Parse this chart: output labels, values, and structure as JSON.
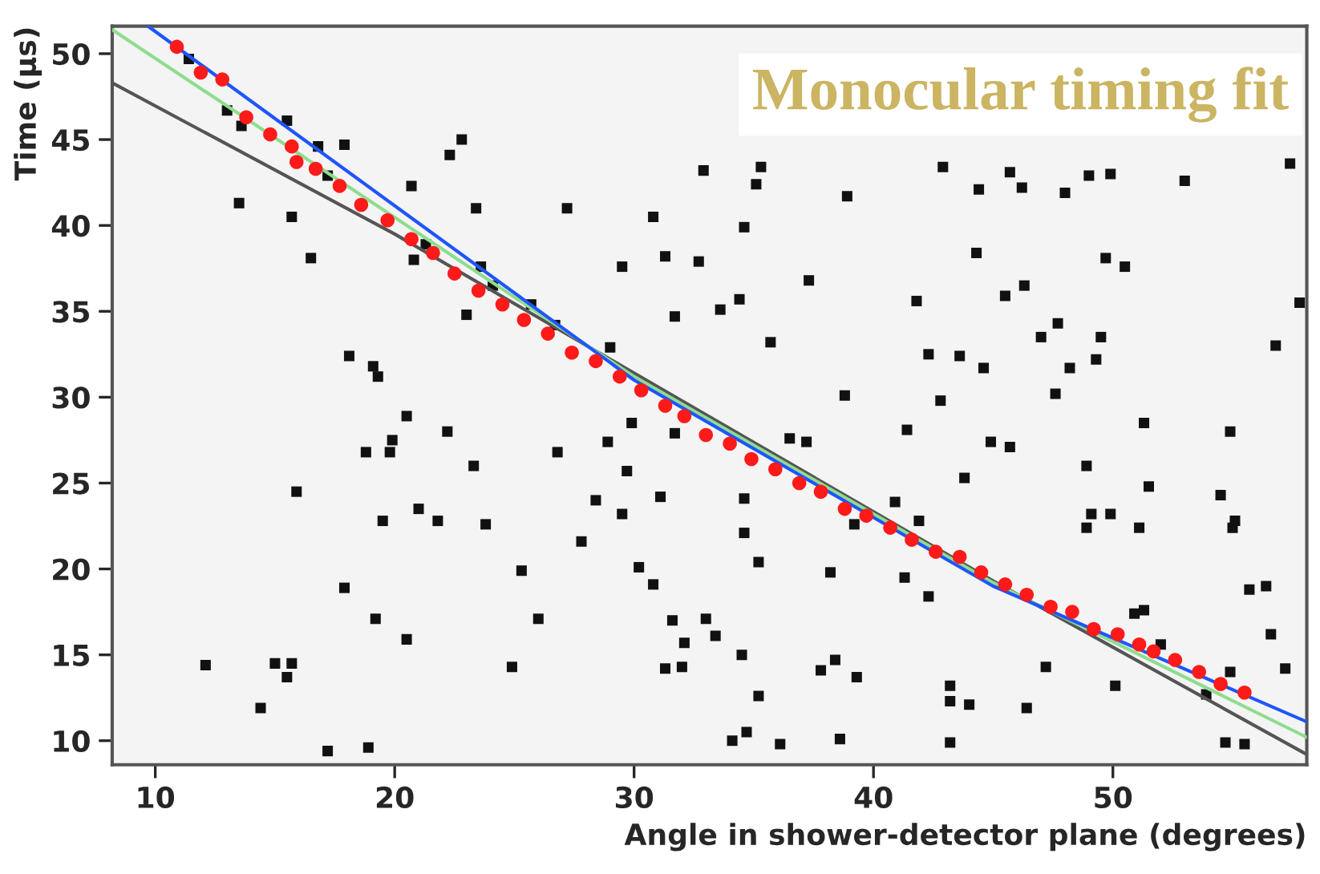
{
  "chart_data": {
    "type": "scatter",
    "title": "Monocular timing fit",
    "xlabel": "Angle in shower-detector plane (degrees)",
    "ylabel": "Time (μs)",
    "xlim": [
      8.2,
      58.1
    ],
    "ylim": [
      8.6,
      51.6
    ],
    "xticks": [
      10,
      20,
      30,
      40,
      50
    ],
    "yticks": [
      10,
      15,
      20,
      25,
      30,
      35,
      40,
      45,
      50
    ],
    "series": [
      {
        "marker": "square",
        "color": "#111111",
        "x": [
          11.4,
          13.0,
          13.6,
          13.5,
          15.5,
          15.7,
          16.8,
          17.9,
          16.5,
          17.2,
          20.7,
          20.8,
          21.3,
          22.3,
          22.8,
          23.4,
          23.6,
          24.1,
          23.0,
          25.7,
          26.7,
          27.2,
          29.0,
          29.5,
          30.8,
          31.3,
          18.1,
          19.1,
          19.3,
          20.5,
          22.2,
          29.9,
          12.1,
          15.0,
          15.7,
          15.5,
          14.4,
          15.9,
          17.2,
          18.9,
          17.9,
          18.8,
          19.8,
          19.9,
          19.5,
          19.2,
          20.5,
          21.0,
          21.8,
          23.3,
          23.8,
          24.9,
          25.3,
          26.0,
          26.8,
          27.8,
          28.4,
          28.9,
          29.7,
          29.5,
          30.2,
          30.8,
          31.6,
          31.3,
          31.1,
          32.9,
          35.3,
          35.1,
          38.9,
          42.9,
          44.4,
          45.7,
          46.2,
          48.0,
          49.0,
          49.9,
          53.0,
          57.4,
          34.6,
          32.7,
          37.3,
          31.7,
          33.6,
          34.4,
          35.7,
          41.8,
          44.3,
          49.7,
          50.5,
          45.5,
          46.3,
          47.7,
          47.0,
          49.5,
          42.3,
          43.6,
          44.6,
          48.2,
          49.3,
          57.8,
          56.8,
          38.8,
          42.8,
          47.6,
          51.3,
          54.9,
          36.5,
          37.2,
          41.4,
          44.9,
          31.7,
          45.7,
          48.9,
          51.5,
          54.5,
          55.1,
          55.0,
          49.1,
          49.9,
          48.9,
          51.1,
          43.8,
          34.6,
          34.6,
          40.9,
          41.9,
          39.2,
          35.2,
          38.2,
          41.3,
          42.3,
          33.0,
          33.4,
          32.1,
          34.5,
          32.0,
          37.8,
          38.4,
          39.3,
          35.2,
          43.2,
          43.2,
          44.0,
          46.4,
          47.2,
          50.1,
          50.9,
          51.3,
          52.0,
          53.9,
          54.9,
          55.7,
          56.4,
          56.6,
          57.2,
          34.1,
          34.7,
          36.1,
          38.6,
          43.2,
          54.7,
          55.5
        ],
        "values": [
          49.7,
          46.7,
          45.8,
          41.3,
          46.1,
          40.5,
          44.6,
          44.7,
          38.1,
          42.9,
          42.3,
          38.0,
          38.9,
          44.1,
          45.0,
          41.0,
          37.6,
          36.5,
          34.8,
          35.4,
          34.2,
          41.0,
          32.9,
          37.6,
          40.5,
          38.2,
          32.4,
          31.8,
          31.2,
          28.9,
          28.0,
          28.5,
          14.4,
          14.5,
          14.5,
          13.7,
          11.9,
          24.5,
          9.4,
          9.6,
          18.9,
          26.8,
          26.8,
          27.5,
          22.8,
          17.1,
          15.9,
          23.5,
          22.8,
          26.0,
          22.6,
          14.3,
          19.9,
          17.1,
          26.8,
          21.6,
          24.0,
          27.4,
          25.7,
          23.2,
          20.1,
          19.1,
          17.0,
          14.2,
          24.2,
          43.2,
          43.4,
          42.4,
          41.7,
          43.4,
          42.1,
          43.1,
          42.2,
          41.9,
          42.9,
          43.0,
          42.6,
          43.6,
          39.9,
          37.9,
          36.8,
          34.7,
          35.1,
          35.7,
          33.2,
          35.6,
          38.4,
          38.1,
          37.6,
          35.9,
          36.5,
          34.3,
          33.5,
          33.5,
          32.5,
          32.4,
          31.7,
          31.7,
          32.2,
          35.5,
          33.0,
          30.1,
          29.8,
          30.2,
          28.5,
          28.0,
          27.6,
          27.4,
          28.1,
          27.4,
          27.9,
          27.1,
          26.0,
          24.8,
          24.3,
          22.8,
          22.4,
          23.2,
          23.2,
          22.4,
          22.4,
          25.3,
          24.1,
          22.1,
          23.9,
          22.8,
          22.6,
          20.4,
          19.8,
          19.5,
          18.4,
          17.1,
          16.1,
          15.7,
          15.0,
          14.3,
          14.1,
          14.7,
          13.7,
          12.6,
          13.2,
          12.3,
          12.1,
          11.9,
          14.3,
          13.2,
          17.4,
          17.6,
          15.6,
          12.7,
          14.0,
          18.8,
          19.0,
          16.2,
          14.2,
          10.0,
          10.5,
          9.8,
          10.1,
          9.9,
          9.9,
          9.8
        ]
      },
      {
        "type": "line",
        "marker": "none",
        "color": "#555555",
        "x": [
          8.2,
          20,
          30,
          45,
          58.1
        ],
        "values": [
          48.3,
          39.5,
          31.4,
          19.3,
          9.2
        ]
      },
      {
        "type": "line",
        "marker": "none",
        "color": "#8fdc8f",
        "x": [
          8.2,
          30,
          45,
          58.1
        ],
        "values": [
          51.4,
          31.2,
          19.2,
          10.2
        ]
      },
      {
        "type": "line",
        "marker": "none",
        "color": "#1f55ff",
        "x": [
          9.7,
          30,
          45,
          58.1
        ],
        "values": [
          51.6,
          31.0,
          19.0,
          11.1
        ]
      },
      {
        "marker": "circle",
        "color": "#ff1a1a",
        "x": [
          10.9,
          11.9,
          12.8,
          13.8,
          14.8,
          15.7,
          15.9,
          16.7,
          17.7,
          18.6,
          19.7,
          20.7,
          21.6,
          22.5,
          23.5,
          24.5,
          25.4,
          26.4,
          27.4,
          28.4,
          29.4,
          30.3,
          31.3,
          32.1,
          33.0,
          34.0,
          34.9,
          35.9,
          36.9,
          37.8,
          38.8,
          39.7,
          40.7,
          41.6,
          42.6,
          43.6,
          44.5,
          45.5,
          46.4,
          47.4,
          48.3,
          49.2,
          50.2,
          51.1,
          51.7,
          52.6,
          53.6,
          54.5,
          55.5
        ],
        "values": [
          50.4,
          48.9,
          48.5,
          46.3,
          45.3,
          44.6,
          43.7,
          43.3,
          42.3,
          41.2,
          40.3,
          39.2,
          38.4,
          37.2,
          36.2,
          35.4,
          34.5,
          33.7,
          32.6,
          32.1,
          31.2,
          30.4,
          29.5,
          28.9,
          27.8,
          27.3,
          26.4,
          25.8,
          25.0,
          24.5,
          23.5,
          23.1,
          22.4,
          21.7,
          21.0,
          20.7,
          19.8,
          19.1,
          18.5,
          17.8,
          17.5,
          16.5,
          16.2,
          15.6,
          15.2,
          14.7,
          14.0,
          13.3,
          12.8
        ]
      }
    ]
  }
}
